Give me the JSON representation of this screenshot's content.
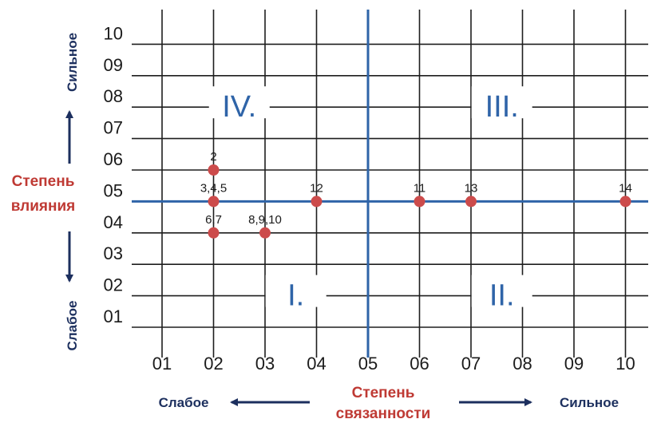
{
  "chart_data": {
    "type": "scatter",
    "x_ticks": [
      "01",
      "02",
      "03",
      "04",
      "05",
      "06",
      "07",
      "08",
      "09",
      "10"
    ],
    "y_ticks": [
      "01",
      "02",
      "03",
      "04",
      "05",
      "06",
      "07",
      "08",
      "09",
      "10"
    ],
    "xlim": [
      1,
      10
    ],
    "ylim": [
      1,
      10
    ],
    "x_axis": {
      "title_line1": "Степень",
      "title_line2": "связанности",
      "low": "Слабое",
      "high": "Сильное"
    },
    "y_axis": {
      "title_line1": "Степень",
      "title_line2": "влияния",
      "low": "Слабое",
      "high": "Сильное"
    },
    "quadrants": [
      {
        "label": "IV.",
        "x": 2.5,
        "y": 8
      },
      {
        "label": "III.",
        "x": 7.6,
        "y": 8
      },
      {
        "label": "I.",
        "x": 3.6,
        "y": 2
      },
      {
        "label": "II.",
        "x": 7.6,
        "y": 2
      }
    ],
    "dividers": {
      "x": 5,
      "y": 5
    },
    "points": [
      {
        "label": "2",
        "x": 2,
        "y": 6
      },
      {
        "label": "3,4,5",
        "x": 2,
        "y": 5
      },
      {
        "label": "6,7",
        "x": 2,
        "y": 4
      },
      {
        "label": "8,9,10",
        "x": 3,
        "y": 4
      },
      {
        "label": "12",
        "x": 4,
        "y": 5
      },
      {
        "label": "11",
        "x": 6,
        "y": 5
      },
      {
        "label": "13",
        "x": 7,
        "y": 5
      },
      {
        "label": "14",
        "x": 10,
        "y": 5
      }
    ],
    "grid": true
  },
  "colors": {
    "grid": "#1e1e1e",
    "divider": "#2f64a8",
    "point": "#cc4b4b",
    "axis_title": "#bf3a34",
    "pole_text": "#1c2f5e",
    "quadrant": "#2f64a8"
  }
}
